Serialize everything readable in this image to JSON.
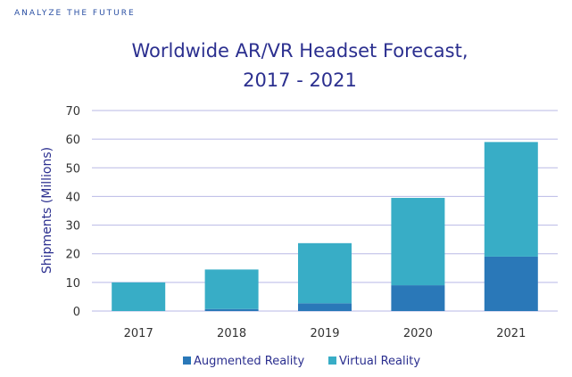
{
  "brand": {
    "tagline": "ANALYZE THE FUTURE"
  },
  "colors": {
    "augmented": "#2a78b8",
    "virtual": "#38adc6",
    "grid": "#b9b9e6",
    "title": "#2b2f8f"
  },
  "chart_data": {
    "type": "bar",
    "stacked": true,
    "title_lines": [
      "Worldwide AR/VR Headset Forecast,",
      "2017 - 2021"
    ],
    "ylabel": "Shipments (Millions)",
    "xlabel": "",
    "categories": [
      "2017",
      "2018",
      "2019",
      "2020",
      "2021"
    ],
    "ylim": [
      0,
      70
    ],
    "yticks": [
      0,
      10,
      20,
      30,
      40,
      50,
      60,
      70
    ],
    "grid": true,
    "legend_position": "bottom",
    "series": [
      {
        "name": "Augmented Reality",
        "values": [
          0,
          0.7,
          2.7,
          9,
          19
        ],
        "color": "#2a78b8"
      },
      {
        "name": "Virtual Reality",
        "values": [
          10,
          13.8,
          21,
          30.5,
          40
        ],
        "color": "#38adc6"
      }
    ]
  }
}
